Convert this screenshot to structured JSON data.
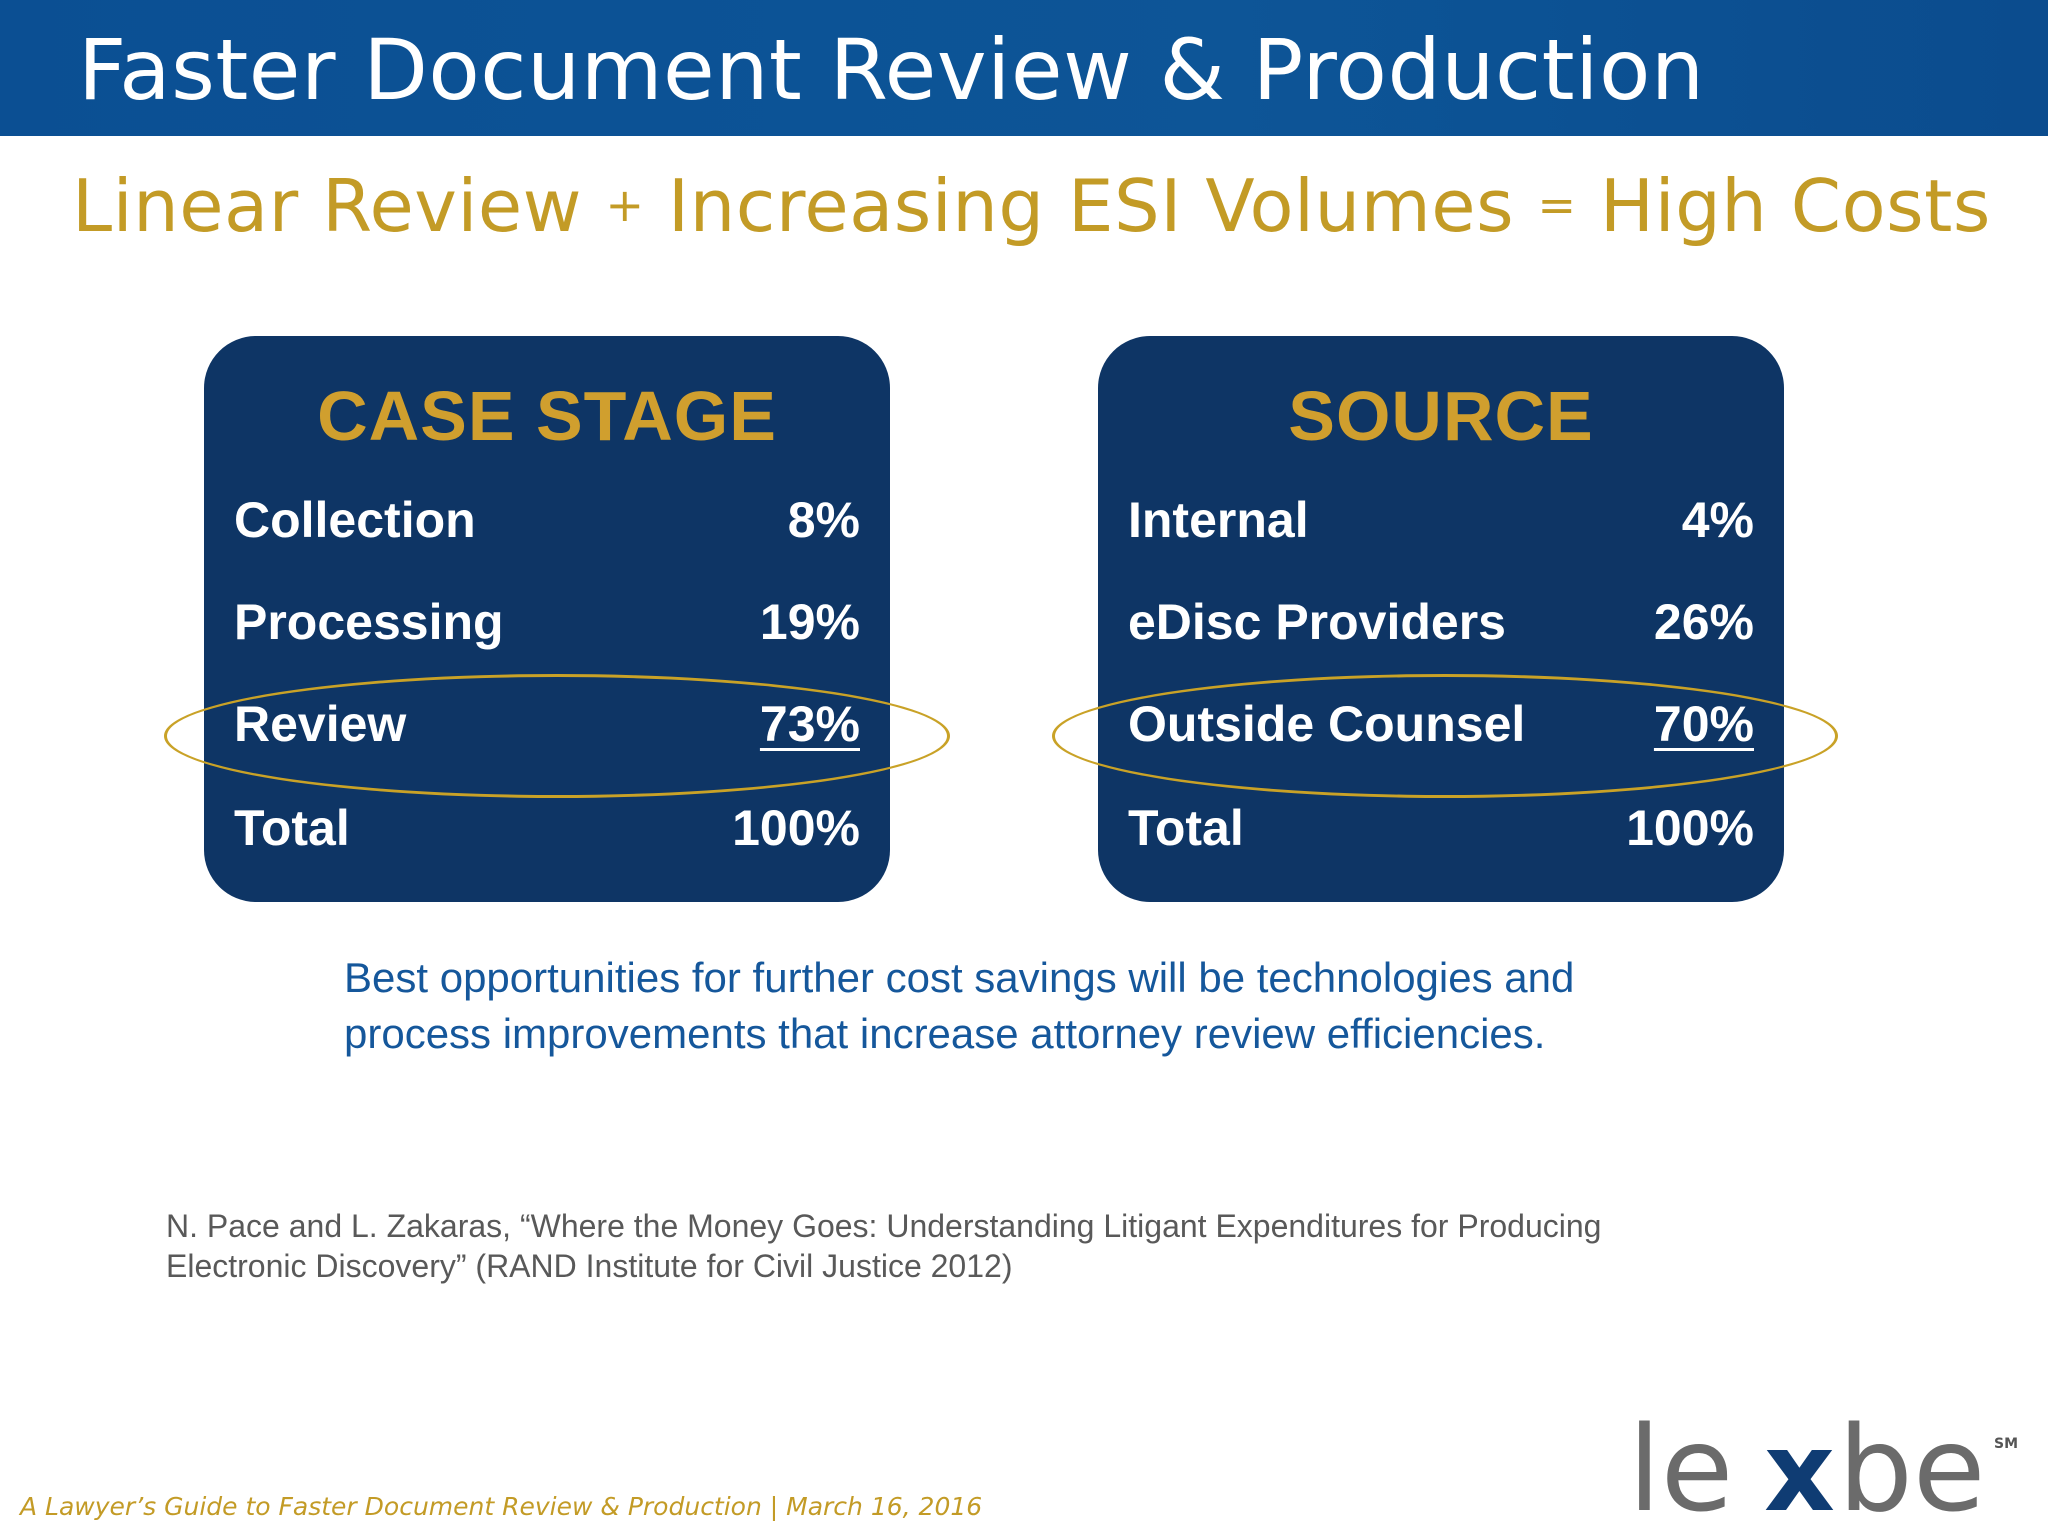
{
  "header": {
    "title": "Faster Document Review & Production",
    "color": "#0b4f93"
  },
  "subtitle": {
    "part1": "Linear Review ",
    "op1": "+",
    "part2": " Increasing ESI Volumes ",
    "op2": "=",
    "part3": " High Costs",
    "color": "#c39b26"
  },
  "case_stage": {
    "heading": "CASE STAGE",
    "rows": [
      {
        "label": "Collection",
        "value": "8%"
      },
      {
        "label": "Processing",
        "value": "19%"
      },
      {
        "label": "Review",
        "value": "73%",
        "highlighted": true
      },
      {
        "label": "Total",
        "value": "100%"
      }
    ]
  },
  "source": {
    "heading": "SOURCE",
    "rows": [
      {
        "label": "Internal",
        "value": "4%"
      },
      {
        "label": "eDisc Providers",
        "value": "26%"
      },
      {
        "label": "Outside Counsel",
        "value": "70%",
        "highlighted": true
      },
      {
        "label": "Total",
        "value": "100%"
      }
    ]
  },
  "takeaway": {
    "line1": "Best opportunities for further cost savings will be technologies and",
    "line2": "process improvements that increase attorney review efficiencies."
  },
  "citation": {
    "line1": "N. Pace and L. Zakaras, “Where the Money Goes: Understanding Litigant Expenditures for Producing",
    "line2": "Electronic Discovery” (RAND Institute for Civil Justice 2012)"
  },
  "footer": {
    "note": "A Lawyer’s Guide to Faster Document Review & Production | March 16, 2016"
  },
  "logo": {
    "text_left": "le",
    "text_x": "x",
    "text_right": "be",
    "mark": "SM"
  },
  "colors": {
    "card_bg": "#0e3565",
    "accent_gold": "#d09f2e",
    "highlight_ring": "#c9a227",
    "takeaway_blue": "#15579b"
  }
}
